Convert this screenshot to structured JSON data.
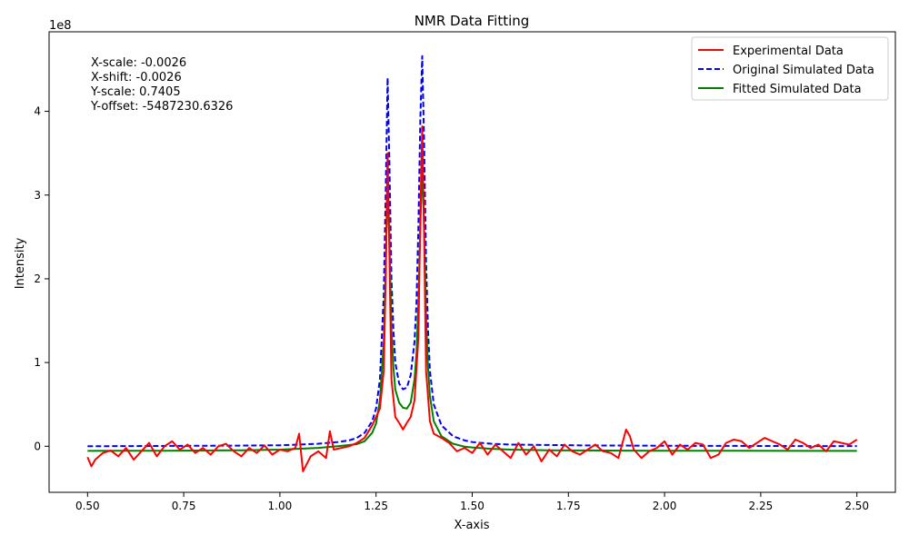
{
  "chart_data": {
    "type": "line",
    "title": "NMR Data Fitting",
    "xlabel": "X-axis",
    "ylabel": "Intensity",
    "y_exponent_label": "1e8",
    "xlim": [
      0.4,
      2.6
    ],
    "ylim": [
      -55000000,
      495000000
    ],
    "xticks": [
      0.5,
      0.75,
      1.0,
      1.25,
      1.5,
      1.75,
      2.0,
      2.25,
      2.5
    ],
    "xtick_labels": [
      "0.50",
      "0.75",
      "1.00",
      "1.25",
      "1.50",
      "1.75",
      "2.00",
      "2.25",
      "2.50"
    ],
    "yticks": [
      0,
      100000000,
      200000000,
      300000000,
      400000000
    ],
    "ytick_labels": [
      "0",
      "1",
      "2",
      "3",
      "4"
    ],
    "annotations": [
      "X-scale: -0.0026",
      "X-shift: -0.0026",
      "Y-scale: 0.7405",
      "Y-offset: -5487230.6326"
    ],
    "legend_position": "top-right",
    "series": [
      {
        "name": "Experimental Data",
        "color": "#ff0000",
        "style": "solid",
        "x": [
          0.5,
          0.51,
          0.52,
          0.54,
          0.56,
          0.58,
          0.6,
          0.62,
          0.64,
          0.66,
          0.68,
          0.7,
          0.72,
          0.74,
          0.76,
          0.78,
          0.8,
          0.82,
          0.84,
          0.86,
          0.88,
          0.9,
          0.92,
          0.94,
          0.96,
          0.98,
          1.0,
          1.02,
          1.04,
          1.05,
          1.06,
          1.08,
          1.1,
          1.12,
          1.13,
          1.14,
          1.16,
          1.18,
          1.2,
          1.22,
          1.24,
          1.26,
          1.27,
          1.275,
          1.28,
          1.285,
          1.29,
          1.3,
          1.31,
          1.32,
          1.33,
          1.34,
          1.35,
          1.36,
          1.365,
          1.37,
          1.375,
          1.38,
          1.39,
          1.4,
          1.42,
          1.44,
          1.46,
          1.48,
          1.5,
          1.52,
          1.54,
          1.56,
          1.58,
          1.6,
          1.62,
          1.64,
          1.66,
          1.68,
          1.7,
          1.72,
          1.74,
          1.76,
          1.78,
          1.8,
          1.82,
          1.84,
          1.86,
          1.88,
          1.9,
          1.91,
          1.92,
          1.94,
          1.96,
          1.98,
          2.0,
          2.02,
          2.04,
          2.06,
          2.08,
          2.1,
          2.12,
          2.14,
          2.16,
          2.18,
          2.2,
          2.22,
          2.24,
          2.26,
          2.28,
          2.3,
          2.32,
          2.34,
          2.36,
          2.38,
          2.4,
          2.42,
          2.44,
          2.46,
          2.48,
          2.5
        ],
        "y": [
          -13000000,
          -24000000,
          -16000000,
          -8000000,
          -5000000,
          -12000000,
          -2000000,
          -16000000,
          -6000000,
          4000000,
          -12000000,
          0,
          6000000,
          -4000000,
          2000000,
          -8000000,
          -2000000,
          -10000000,
          0,
          3000000,
          -6000000,
          -12000000,
          -2000000,
          -8000000,
          1000000,
          -10000000,
          -4000000,
          -6000000,
          -2000000,
          15000000,
          -30000000,
          -12000000,
          -6000000,
          -14000000,
          18000000,
          -4000000,
          -2000000,
          0,
          4000000,
          10000000,
          25000000,
          45000000,
          90000000,
          200000000,
          350000000,
          220000000,
          80000000,
          35000000,
          28000000,
          20000000,
          28000000,
          35000000,
          55000000,
          130000000,
          270000000,
          382000000,
          250000000,
          90000000,
          30000000,
          15000000,
          10000000,
          4000000,
          -6000000,
          -2000000,
          -8000000,
          4000000,
          -10000000,
          2000000,
          -6000000,
          -14000000,
          4000000,
          -10000000,
          0,
          -18000000,
          -4000000,
          -12000000,
          2000000,
          -6000000,
          -10000000,
          -4000000,
          2000000,
          -6000000,
          -8000000,
          -14000000,
          20000000,
          12000000,
          -4000000,
          -14000000,
          -6000000,
          -2000000,
          6000000,
          -10000000,
          2000000,
          -4000000,
          4000000,
          2000000,
          -14000000,
          -10000000,
          4000000,
          8000000,
          6000000,
          -2000000,
          4000000,
          10000000,
          6000000,
          2000000,
          -4000000,
          8000000,
          4000000,
          -2000000,
          2000000,
          -6000000,
          6000000,
          4000000,
          2000000,
          8000000
        ]
      },
      {
        "name": "Original Simulated Data",
        "color": "#0000ff",
        "style": "dashed",
        "x": [
          0.5,
          0.6,
          0.7,
          0.8,
          0.9,
          1.0,
          1.05,
          1.1,
          1.15,
          1.18,
          1.2,
          1.22,
          1.24,
          1.25,
          1.26,
          1.27,
          1.275,
          1.28,
          1.285,
          1.29,
          1.295,
          1.3,
          1.31,
          1.32,
          1.33,
          1.34,
          1.35,
          1.355,
          1.36,
          1.365,
          1.37,
          1.375,
          1.38,
          1.385,
          1.39,
          1.4,
          1.42,
          1.45,
          1.48,
          1.5,
          1.55,
          1.6,
          1.7,
          1.8,
          1.9,
          2.0,
          2.2,
          2.4,
          2.5
        ],
        "y": [
          0,
          200000,
          400000,
          600000,
          800000,
          1200000,
          2000000,
          3000000,
          5000000,
          7000000,
          10000000,
          16000000,
          30000000,
          45000000,
          80000000,
          180000000,
          300000000,
          440000000,
          330000000,
          200000000,
          140000000,
          100000000,
          75000000,
          68000000,
          70000000,
          85000000,
          125000000,
          170000000,
          260000000,
          390000000,
          466000000,
          360000000,
          220000000,
          140000000,
          90000000,
          50000000,
          25000000,
          12000000,
          7000000,
          5000000,
          3000000,
          2000000,
          1500000,
          1000000,
          800000,
          600000,
          400000,
          200000,
          200000
        ]
      },
      {
        "name": "Fitted Simulated Data",
        "color": "#008000",
        "style": "solid",
        "x": [
          0.5,
          0.7,
          0.9,
          1.0,
          1.1,
          1.15,
          1.2,
          1.22,
          1.24,
          1.25,
          1.26,
          1.27,
          1.275,
          1.28,
          1.285,
          1.29,
          1.295,
          1.3,
          1.31,
          1.32,
          1.33,
          1.34,
          1.35,
          1.355,
          1.36,
          1.365,
          1.37,
          1.375,
          1.38,
          1.385,
          1.39,
          1.4,
          1.42,
          1.45,
          1.48,
          1.5,
          1.55,
          1.6,
          1.7,
          1.8,
          1.9,
          2.0,
          2.2,
          2.4,
          2.5
        ],
        "y": [
          -5500000,
          -5300000,
          -4800000,
          -4000000,
          -2000000,
          0,
          2500000,
          6000000,
          16000000,
          27000000,
          55000000,
          125000000,
          210000000,
          320000000,
          240000000,
          140000000,
          95000000,
          68000000,
          52000000,
          46000000,
          45000000,
          52000000,
          80000000,
          110000000,
          170000000,
          260000000,
          338000000,
          260000000,
          155000000,
          95000000,
          60000000,
          30000000,
          12000000,
          3000000,
          -500000,
          -1500000,
          -3000000,
          -4000000,
          -4800000,
          -5000000,
          -5200000,
          -5300000,
          -5400000,
          -5500000,
          -5500000
        ]
      }
    ]
  }
}
